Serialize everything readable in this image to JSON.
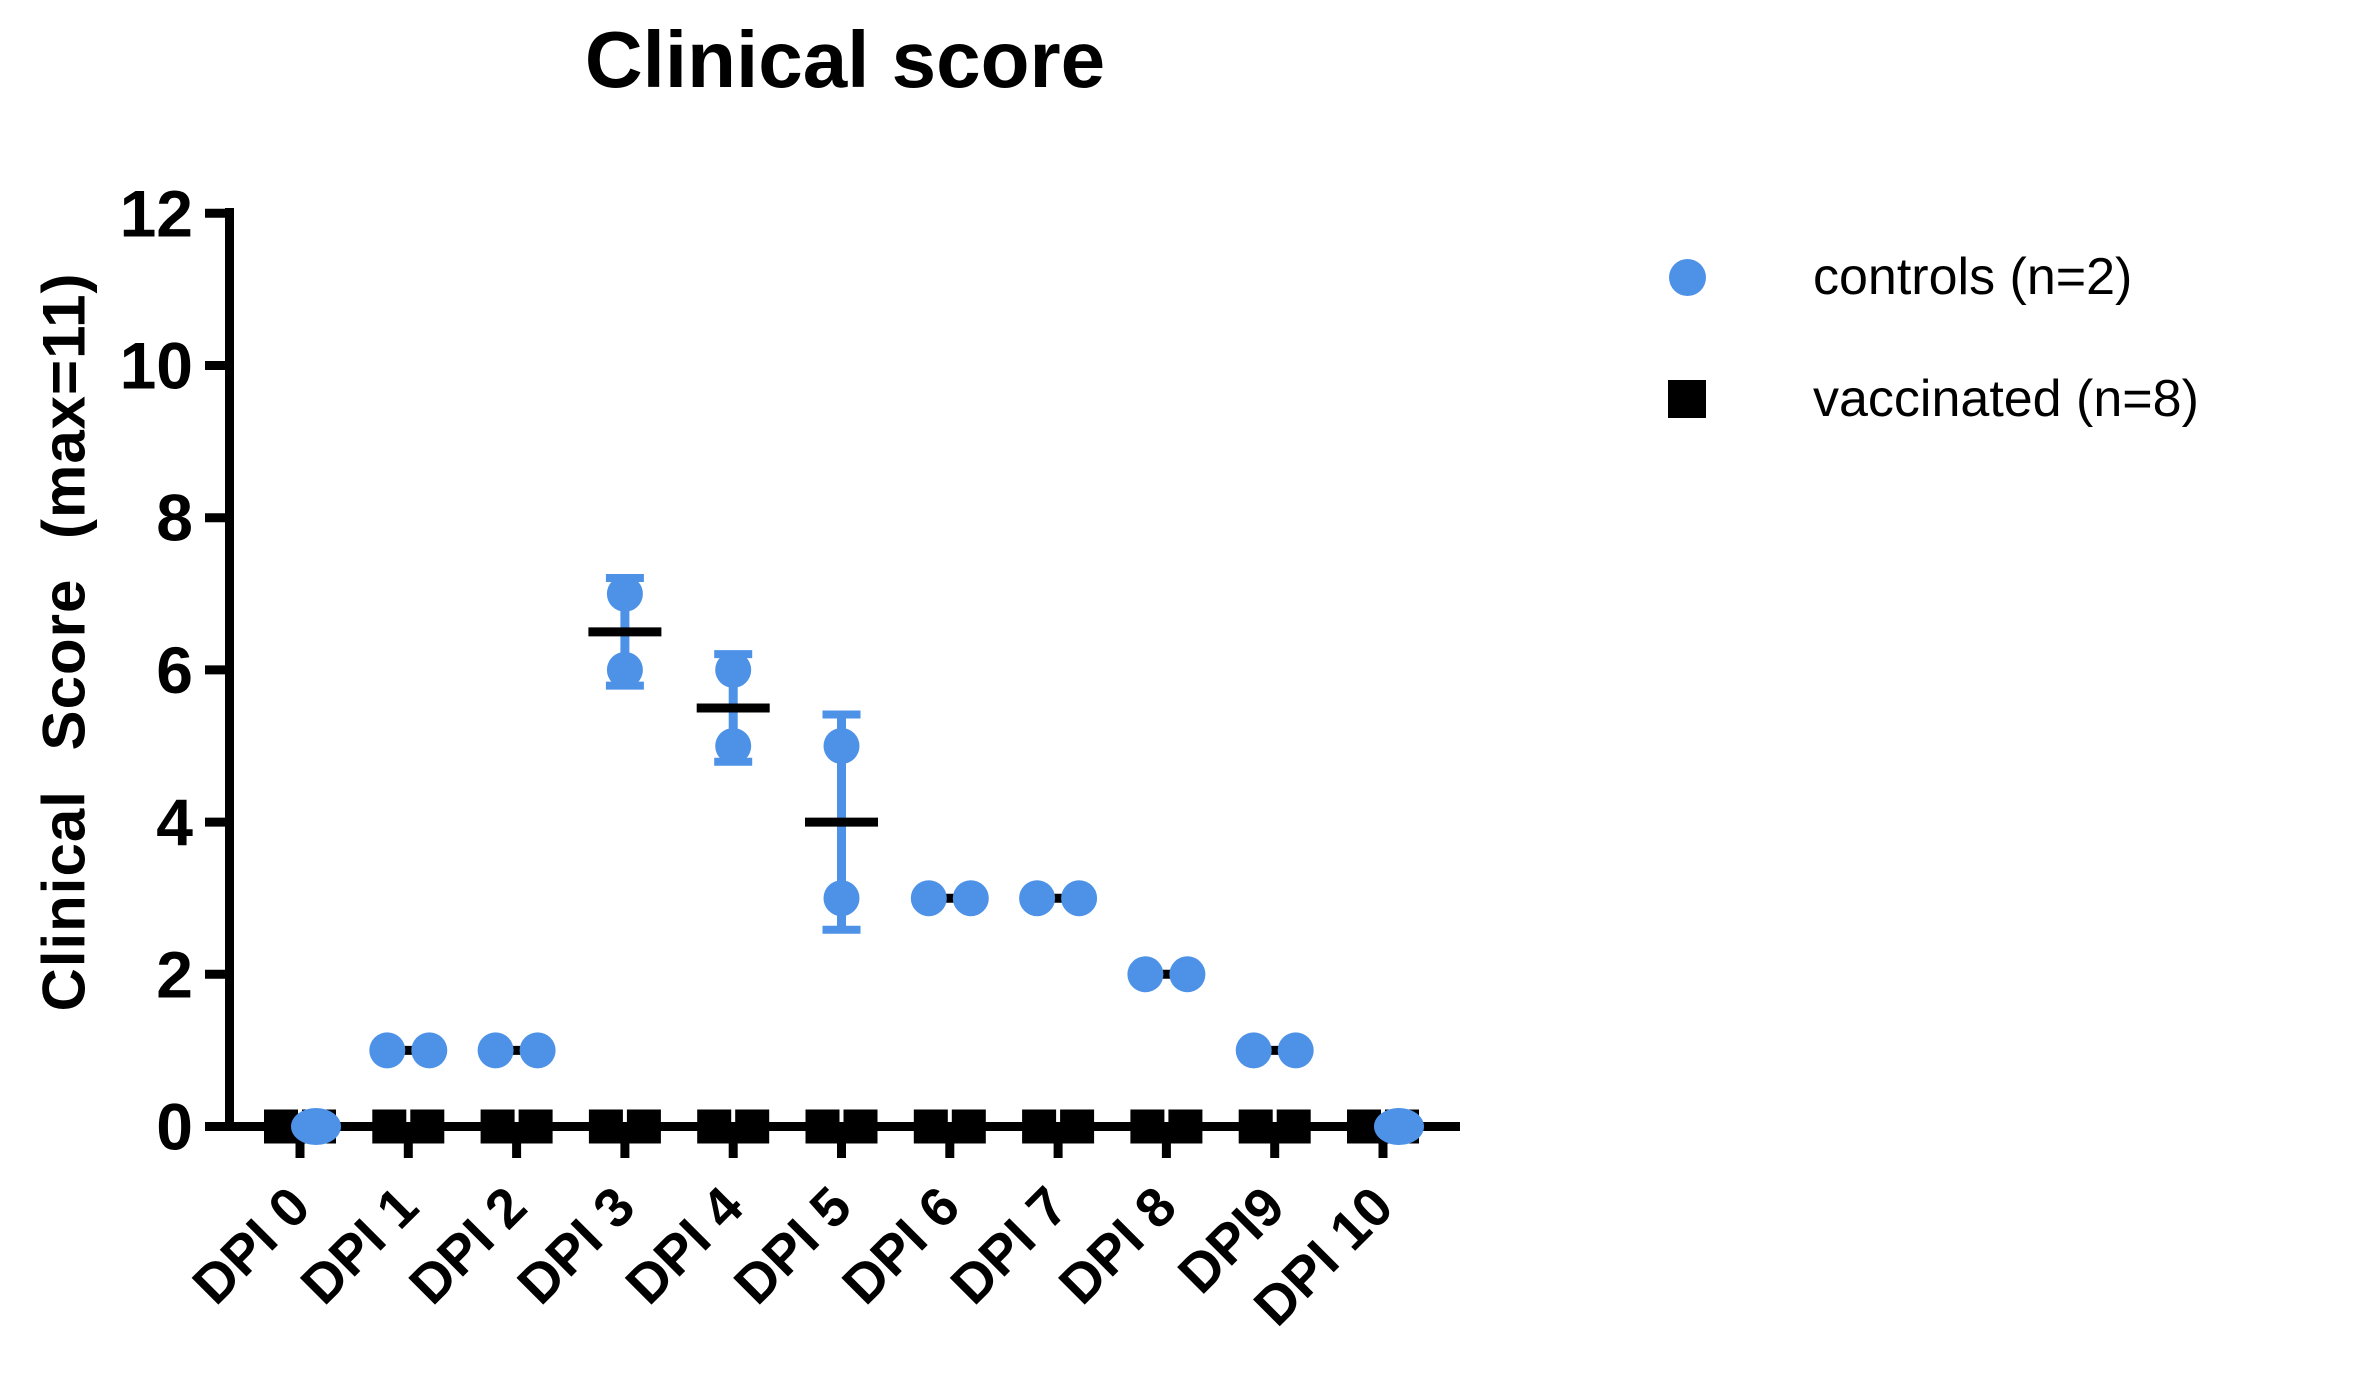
{
  "chart_data": {
    "type": "scatter",
    "title": "Clinical score",
    "ylabel": "Clinical Score (max=11)",
    "xlabel": "",
    "ylim": [
      0,
      12
    ],
    "yticks": [
      0,
      2,
      4,
      6,
      8,
      10,
      12
    ],
    "categories": [
      "DPI 0",
      "DPI 1",
      "DPI 2",
      "DPI 3",
      "DPI 4",
      "DPI 5",
      "DPI 6",
      "DPI 7",
      "DPI 8",
      "DPI9",
      "DPI 10"
    ],
    "grid": "off",
    "legend_position": "right",
    "error_bar_style": "mean plus-minus SD",
    "series": [
      {
        "name": "controls (n=2)",
        "marker": "circle",
        "color": "#4E92E8",
        "values": [
          [
            0,
            0
          ],
          [
            1,
            1
          ],
          [
            1,
            1
          ],
          [
            6,
            7
          ],
          [
            5,
            6
          ],
          [
            3,
            5
          ],
          [
            3,
            3
          ],
          [
            3,
            3
          ],
          [
            2,
            2
          ],
          [
            1,
            1
          ],
          [
            0,
            0
          ]
        ],
        "means": [
          0,
          1,
          1,
          6.5,
          5.5,
          4,
          3,
          3,
          2,
          1,
          0
        ]
      },
      {
        "name": "vaccinated (n=8)",
        "marker": "square",
        "color": "#000000",
        "values": [
          [
            0,
            0,
            0,
            0,
            0,
            0,
            0,
            0
          ],
          [
            0,
            0,
            0,
            0,
            0,
            0,
            0,
            0
          ],
          [
            0,
            0,
            0,
            0,
            0,
            0,
            0,
            0
          ],
          [
            0,
            0,
            0,
            0,
            0,
            0,
            0,
            0
          ],
          [
            0,
            0,
            0,
            0,
            0,
            0,
            0,
            0
          ],
          [
            0,
            0,
            0,
            0,
            0,
            0,
            0,
            0
          ],
          [
            0,
            0,
            0,
            0,
            0,
            0,
            0,
            0
          ],
          [
            0,
            0,
            0,
            0,
            0,
            0,
            0,
            0
          ],
          [
            0,
            0,
            0,
            0,
            0,
            0,
            0,
            0
          ],
          [
            0,
            0,
            0,
            0,
            0,
            0,
            0,
            0
          ],
          [
            0,
            0,
            0,
            0,
            0,
            0,
            0,
            0
          ]
        ],
        "means": [
          0,
          0,
          0,
          0,
          0,
          0,
          0,
          0,
          0,
          0,
          0
        ]
      }
    ],
    "legend": [
      {
        "label": "controls (n=2)",
        "marker": "circle",
        "color": "#4E92E8"
      },
      {
        "label": "vaccinated (n=8)",
        "marker": "square",
        "color": "#000000"
      }
    ],
    "axis_color": "#000000"
  }
}
